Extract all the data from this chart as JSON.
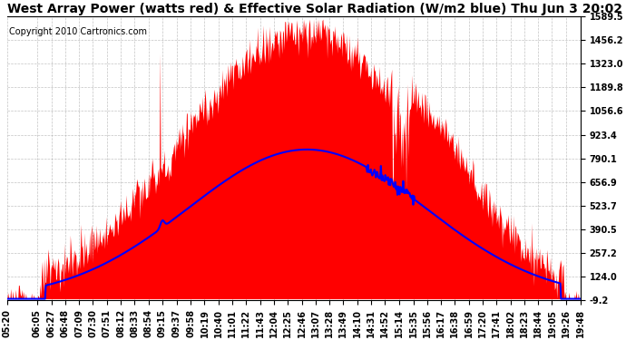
{
  "title": "West Array Power (watts red) & Effective Solar Radiation (W/m2 blue) Thu Jun 3 20:02",
  "copyright_text": "Copyright 2010 Cartronics.com",
  "background_color": "#ffffff",
  "grid_color": "#aaaaaa",
  "red_fill_color": "#ff0000",
  "blue_line_color": "#0000ff",
  "y_min": -9.2,
  "y_max": 1589.5,
  "y_ticks": [
    -9.2,
    124.0,
    257.2,
    390.5,
    523.7,
    656.9,
    790.1,
    923.4,
    1056.6,
    1189.8,
    1323.0,
    1456.2,
    1589.5
  ],
  "x_tick_labels": [
    "05:20",
    "06:05",
    "06:27",
    "06:48",
    "07:09",
    "07:30",
    "07:51",
    "08:12",
    "08:33",
    "08:54",
    "09:15",
    "09:37",
    "09:58",
    "10:19",
    "10:40",
    "11:01",
    "11:22",
    "11:43",
    "12:04",
    "12:25",
    "12:46",
    "13:07",
    "13:28",
    "13:49",
    "14:10",
    "14:31",
    "14:52",
    "15:14",
    "15:35",
    "15:56",
    "16:17",
    "16:38",
    "16:59",
    "17:20",
    "17:41",
    "18:02",
    "18:23",
    "18:44",
    "19:05",
    "19:26",
    "19:48"
  ],
  "title_fontsize": 10,
  "tick_fontsize": 7,
  "copyright_fontsize": 7,
  "power_peak": 1500,
  "power_peak_hour": 12.8,
  "power_sigma": 3.0,
  "solar_peak": 840,
  "solar_peak_hour": 12.9,
  "solar_sigma": 3.0,
  "noise_seed": 123,
  "n_points": 800
}
